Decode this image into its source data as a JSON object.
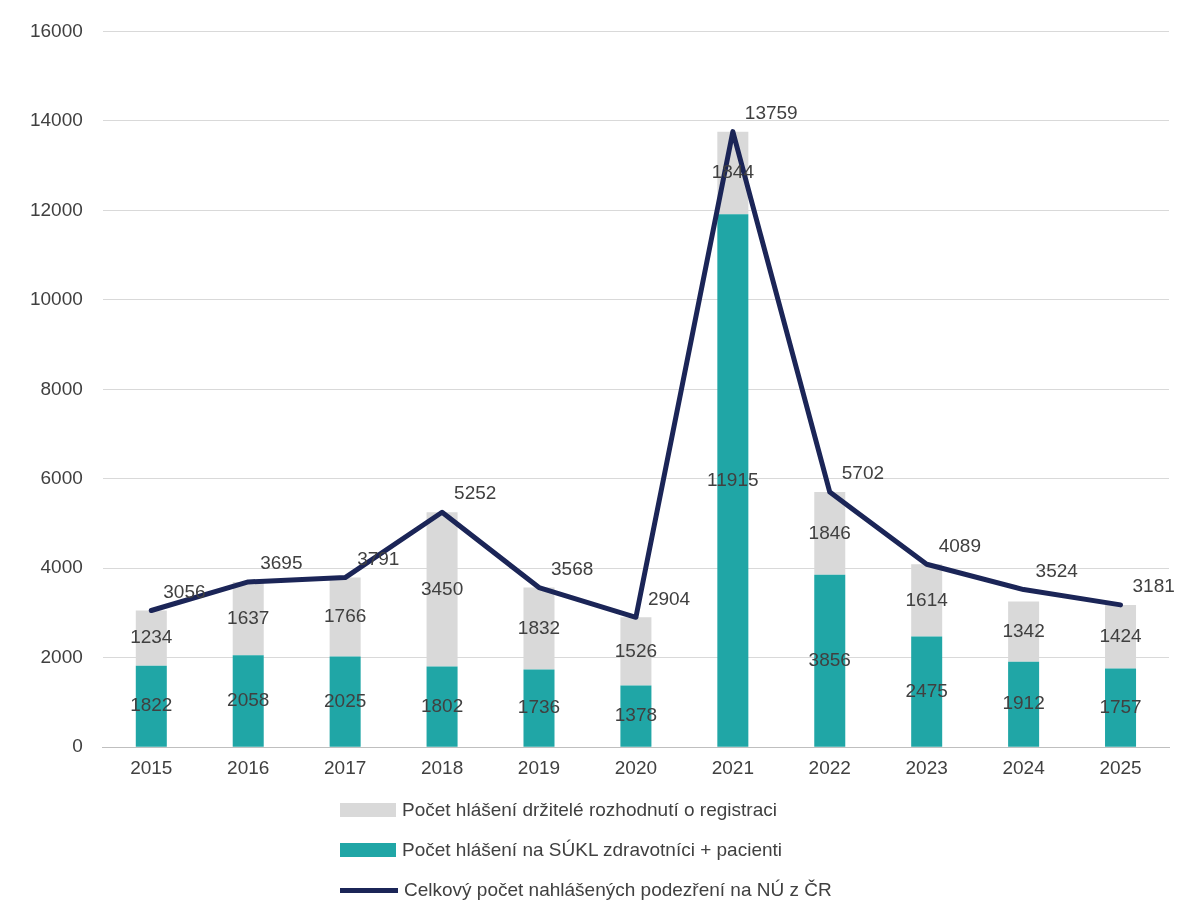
{
  "chart_data": {
    "type": "bar",
    "stacked": true,
    "categories": [
      "2015",
      "2016",
      "2017",
      "2018",
      "2019",
      "2020",
      "2021",
      "2022",
      "2023",
      "2024",
      "2025"
    ],
    "series": [
      {
        "name": "Počet hlášení na SÚKL zdravotníci + pacienti",
        "color": "#20a6a6",
        "values": [
          1822,
          2058,
          2025,
          1802,
          1736,
          1378,
          11915,
          3856,
          2475,
          1912,
          1757
        ]
      },
      {
        "name": "Počet hlášení držitelé rozhodnutí o registraci",
        "color": "#d9d9d9",
        "values": [
          1234,
          1637,
          1766,
          3450,
          1832,
          1526,
          1844,
          1846,
          1614,
          1342,
          1424
        ]
      },
      {
        "name": "Celkový počet nahlášených podezření na NÚ z ČR",
        "type": "line",
        "color": "#1b2557",
        "values": [
          3056,
          3695,
          3791,
          5252,
          3568,
          2904,
          13759,
          5702,
          4089,
          3524,
          3181
        ]
      }
    ],
    "ylim": [
      0,
      16000
    ],
    "yticks": [
      0,
      2000,
      4000,
      6000,
      8000,
      10000,
      12000,
      14000,
      16000
    ],
    "grid": "y",
    "legend": "bottom",
    "data_labels": true,
    "marker": "none",
    "line_style": "solid"
  }
}
